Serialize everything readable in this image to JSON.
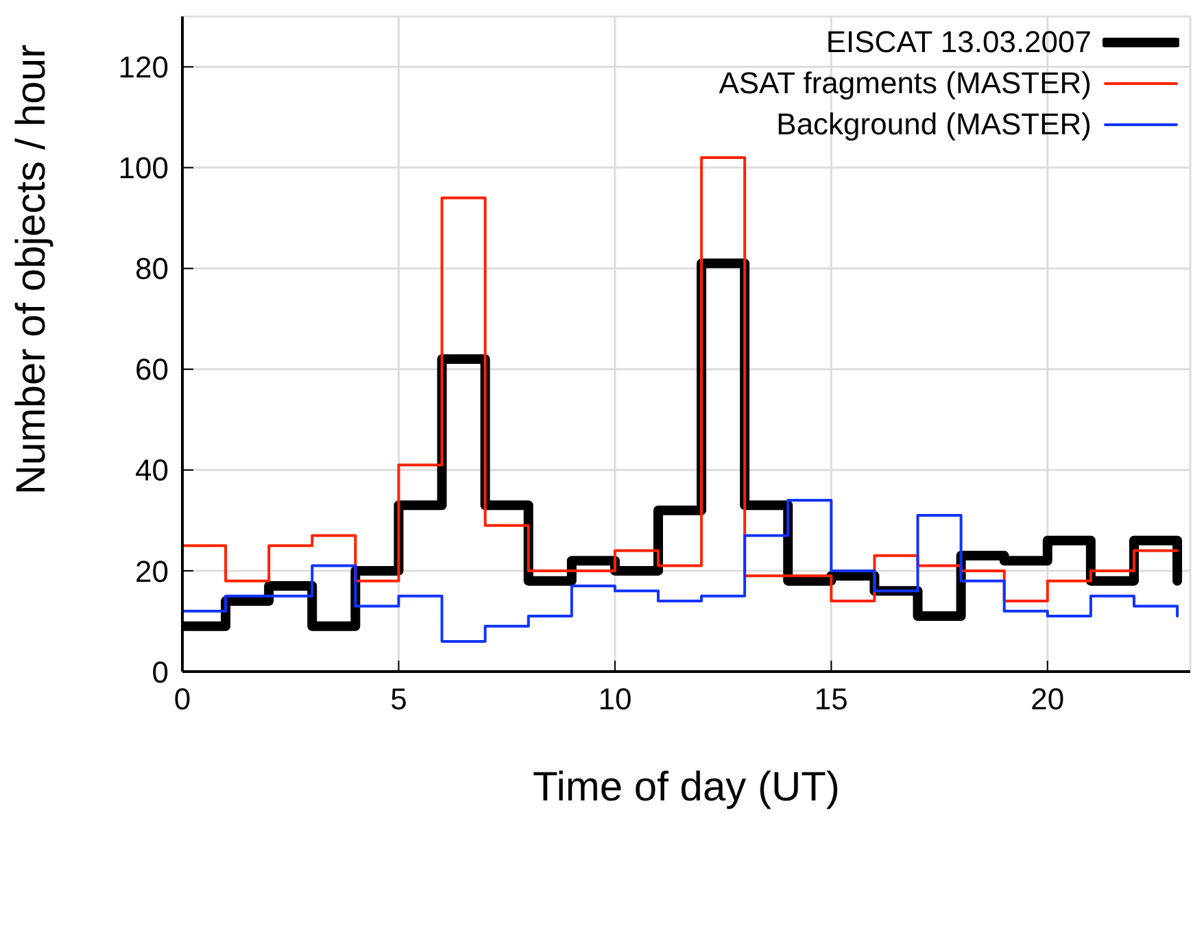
{
  "chart_data": {
    "type": "step",
    "xlabel": "Time of day (UT)",
    "ylabel": "Number of objects / hour",
    "x": [
      0,
      1,
      2,
      3,
      4,
      5,
      6,
      7,
      8,
      9,
      10,
      11,
      12,
      13,
      14,
      15,
      16,
      17,
      18,
      19,
      20,
      21,
      22,
      23
    ],
    "series": [
      {
        "name": "EISCAT 13.03.2007",
        "color": "#000000",
        "values": [
          9,
          14,
          17,
          9,
          20,
          33,
          62,
          33,
          18,
          22,
          20,
          32,
          81,
          33,
          18,
          19,
          16,
          11,
          23,
          22,
          26,
          18,
          26,
          18
        ]
      },
      {
        "name": "ASAT fragments (MASTER)",
        "color": "#ff2200",
        "values": [
          25,
          18,
          25,
          27,
          18,
          41,
          94,
          29,
          20,
          20,
          24,
          21,
          102,
          19,
          19,
          14,
          23,
          21,
          20,
          14,
          18,
          20,
          24,
          24
        ]
      },
      {
        "name": "Background (MASTER)",
        "color": "#1133ff",
        "values": [
          12,
          15,
          15,
          21,
          13,
          15,
          6,
          9,
          11,
          17,
          16,
          14,
          15,
          27,
          34,
          20,
          16,
          31,
          18,
          12,
          11,
          15,
          13,
          11
        ]
      }
    ],
    "xlim": [
      0,
      23.3
    ],
    "xticks": [
      0,
      5,
      10,
      15,
      20
    ],
    "ylim": [
      0,
      130
    ],
    "yticks": [
      0,
      20,
      40,
      60,
      80,
      100,
      120
    ],
    "grid": true,
    "legend": "top right",
    "marker": "none",
    "line_style": "solid"
  }
}
